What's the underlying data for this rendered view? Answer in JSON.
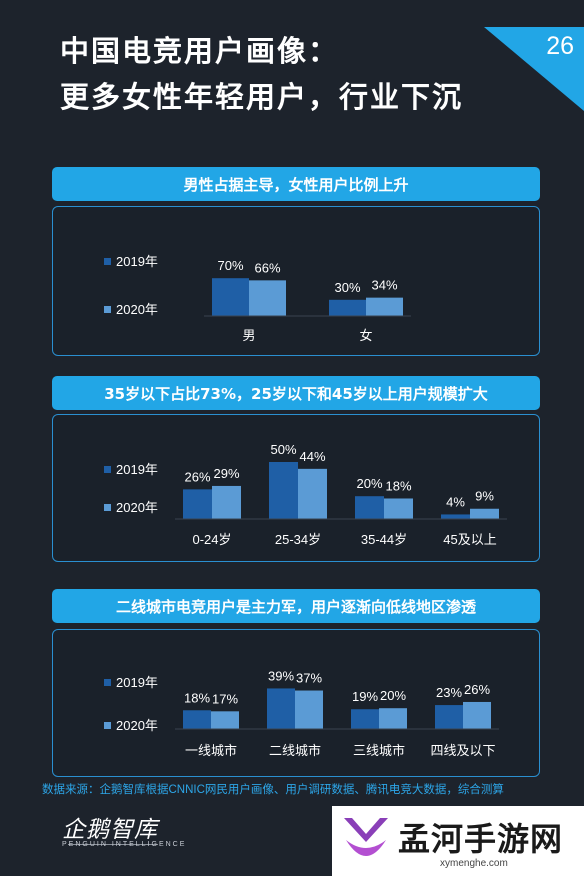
{
  "header": {
    "title_line1": "中国电竞用户画像：",
    "title_line2": "更多女性年轻用户，行业下沉",
    "page_number": "26"
  },
  "colors": {
    "background": "#1d232c",
    "banner": "#22a6e6",
    "series_2019": "#1f5fa6",
    "series_2020": "#5b9bd5",
    "panel_border": "#2a8fd0",
    "source_text": "#2da6e8"
  },
  "chart_data": [
    {
      "type": "bar",
      "title": "男性占据主导，女性用户比例上升",
      "categories": [
        "男",
        "女"
      ],
      "series": [
        {
          "name": "2019年",
          "values": [
            70,
            30
          ],
          "labels": [
            "70%",
            "30%"
          ]
        },
        {
          "name": "2020年",
          "values": [
            66,
            34
          ],
          "labels": [
            "66%",
            "34%"
          ]
        }
      ],
      "ylim": [
        0,
        100
      ],
      "legend": "left",
      "grid": false
    },
    {
      "type": "bar",
      "title": "35岁以下占比73%，25岁以下和45岁以上用户规模扩大",
      "categories": [
        "0-24岁",
        "25-34岁",
        "35-44岁",
        "45及以上"
      ],
      "series": [
        {
          "name": "2019年",
          "values": [
            26,
            50,
            20,
            4
          ],
          "labels": [
            "26%",
            "50%",
            "20%",
            "4%"
          ]
        },
        {
          "name": "2020年",
          "values": [
            29,
            44,
            18,
            9
          ],
          "labels": [
            "29%",
            "44%",
            "18%",
            "9%"
          ]
        }
      ],
      "ylim": [
        0,
        100
      ],
      "legend": "left",
      "grid": false
    },
    {
      "type": "bar",
      "title": "二线城市电竞用户是主力军，用户逐渐向低线地区渗透",
      "categories": [
        "一线城市",
        "二线城市",
        "三线城市",
        "四线及以下"
      ],
      "series": [
        {
          "name": "2019年",
          "values": [
            18,
            39,
            19,
            23
          ],
          "labels": [
            "18%",
            "39%",
            "19%",
            "23%"
          ]
        },
        {
          "name": "2020年",
          "values": [
            17,
            37,
            20,
            26
          ],
          "labels": [
            "17%",
            "37%",
            "20%",
            "26%"
          ]
        }
      ],
      "ylim": [
        0,
        100
      ],
      "legend": "left",
      "grid": false
    }
  ],
  "footer": {
    "source": "数据来源：企鹅智库根据CNNIC网民用户画像、用户调研数据、腾讯电竞大数据，综合测算",
    "logo_text": "企鹅智库",
    "logo_sub": "PENGUIN INTELLIGENCE"
  },
  "watermark": {
    "title": "孟河手游网",
    "url": "xymenghe.com"
  }
}
